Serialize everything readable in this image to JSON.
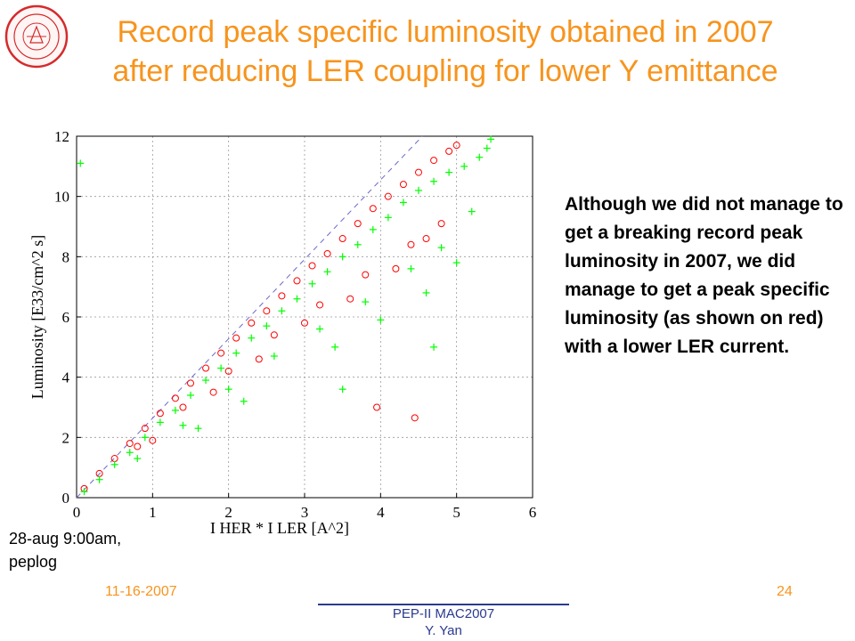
{
  "slide": {
    "title_line1": "Record peak specific luminosity obtained in 2007",
    "title_line2": "after reducing LER coupling for lower Y emittance",
    "side_text": "Although we did not manage to get a breaking record peak luminosity in 2007, we did manage to get a peak specific luminosity (as shown on red) with a lower LER current.",
    "note_line1": "28-aug 9:00am,",
    "note_line2": "peplog",
    "footer_date": "11-16-2007",
    "footer_center_line1": "PEP-II MAC2007",
    "footer_center_line2": "Y. Yan",
    "page_number": "24",
    "logo_icon": "university-seal-icon"
  },
  "colors": {
    "title": "#f7941d",
    "footer_center": "#2a3a8f",
    "series_red": "#ff0000",
    "series_green": "#00ff00",
    "reference_line": "#6a6acc"
  },
  "chart_data": {
    "type": "scatter",
    "xlabel": "I HER * I LER [A^2]",
    "ylabel": "Luminosity [E33/cm^2 s]",
    "xlim": [
      0,
      6
    ],
    "ylim": [
      0,
      12
    ],
    "xticks": [
      "0",
      "1",
      "2",
      "3",
      "4",
      "5",
      "6"
    ],
    "yticks": [
      "0",
      "2",
      "4",
      "6",
      "8",
      "10",
      "12"
    ],
    "grid": true,
    "legend": "none",
    "series": [
      {
        "marker": "circle",
        "color": "#ff0000",
        "x": [
          0.1,
          0.3,
          0.5,
          0.7,
          0.9,
          1.1,
          1.3,
          1.5,
          1.7,
          1.9,
          2.1,
          2.3,
          2.5,
          2.7,
          2.9,
          3.1,
          3.3,
          3.5,
          3.7,
          3.9,
          4.1,
          4.3,
          4.5,
          4.7,
          4.9,
          5.0,
          0.8,
          1.4,
          2.0,
          2.6,
          3.2,
          3.8,
          4.4,
          4.8,
          1.0,
          1.8,
          2.4,
          3.0,
          3.6,
          4.2,
          4.6,
          3.95,
          4.45
        ],
        "y": [
          0.3,
          0.8,
          1.3,
          1.8,
          2.3,
          2.8,
          3.3,
          3.8,
          4.3,
          4.8,
          5.3,
          5.8,
          6.2,
          6.7,
          7.2,
          7.7,
          8.1,
          8.6,
          9.1,
          9.6,
          10.0,
          10.4,
          10.8,
          11.2,
          11.5,
          11.7,
          1.7,
          3.0,
          4.2,
          5.4,
          6.4,
          7.4,
          8.4,
          9.1,
          1.9,
          3.5,
          4.6,
          5.8,
          6.6,
          7.6,
          8.6,
          3.0,
          2.65
        ]
      },
      {
        "marker": "plus",
        "color": "#00ff00",
        "x": [
          0.1,
          0.3,
          0.5,
          0.7,
          0.9,
          1.1,
          1.3,
          1.5,
          1.7,
          1.9,
          2.1,
          2.3,
          2.5,
          2.7,
          2.9,
          3.1,
          3.3,
          3.5,
          3.7,
          3.9,
          4.1,
          4.3,
          4.5,
          4.7,
          4.9,
          5.1,
          5.3,
          5.4,
          5.45,
          0.8,
          1.4,
          2.0,
          2.6,
          3.2,
          3.8,
          4.4,
          4.8,
          5.2,
          1.6,
          2.2,
          3.4,
          4.0,
          4.6,
          5.0,
          3.5,
          4.7,
          0.05
        ],
        "y": [
          0.2,
          0.6,
          1.1,
          1.5,
          2.0,
          2.5,
          2.9,
          3.4,
          3.9,
          4.3,
          4.8,
          5.3,
          5.7,
          6.2,
          6.6,
          7.1,
          7.5,
          8.0,
          8.4,
          8.9,
          9.3,
          9.8,
          10.2,
          10.5,
          10.8,
          11.0,
          11.3,
          11.6,
          11.9,
          1.3,
          2.4,
          3.6,
          4.7,
          5.6,
          6.5,
          7.6,
          8.3,
          9.5,
          2.3,
          3.2,
          5.0,
          5.9,
          6.8,
          7.8,
          3.6,
          5.0,
          11.1
        ]
      },
      {
        "marker": "dashed-line",
        "color": "#6a6acc",
        "x": [
          0,
          4.55
        ],
        "y": [
          0,
          12
        ]
      }
    ]
  }
}
